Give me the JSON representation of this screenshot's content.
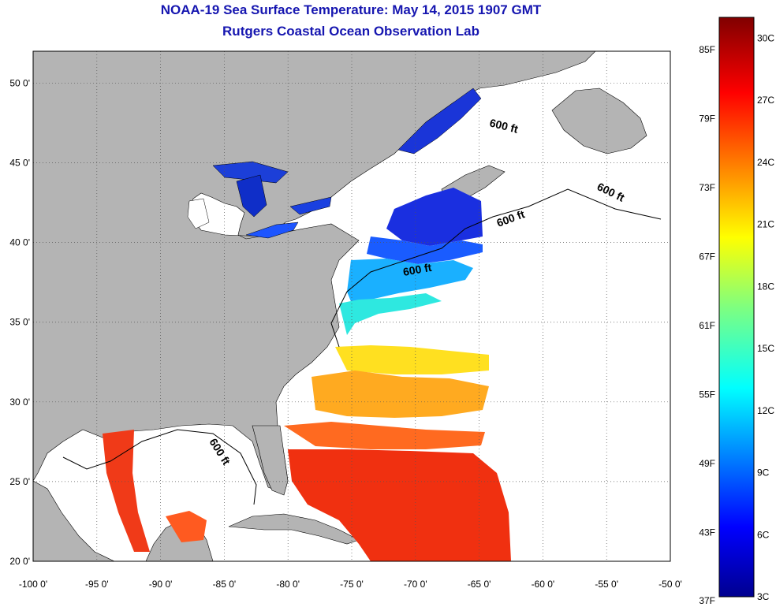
{
  "title": "NOAA-19 Sea Surface Temperature:  May 14, 2015 1907 GMT",
  "subtitle": "Rutgers Coastal Ocean Observation Lab",
  "map": {
    "lon_range": [
      -100,
      -50
    ],
    "lat_range": [
      20,
      52
    ],
    "lon_ticks": [
      "-100 0'",
      "-95 0'",
      "-90 0'",
      "-85 0'",
      "-80 0'",
      "-75 0'",
      "-70 0'",
      "-65 0'",
      "-60 0'",
      "-55 0'",
      "-50 0'"
    ],
    "lat_ticks": [
      "20 0'",
      "25 0'",
      "30 0'",
      "35 0'",
      "40 0'",
      "45 0'",
      "50 0'"
    ],
    "contour_label": "600 ft",
    "land_color": "#b4b4b4",
    "cloud_color": "#ffffff"
  },
  "colorbar": {
    "fahrenheit_labels": [
      "85F",
      "79F",
      "73F",
      "67F",
      "61F",
      "55F",
      "49F",
      "43F",
      "37F"
    ],
    "celsius_labels": [
      "30C",
      "27C",
      "24C",
      "21C",
      "18C",
      "15C",
      "12C",
      "9C",
      "6C",
      "3C"
    ],
    "range_c": [
      3,
      31
    ]
  }
}
